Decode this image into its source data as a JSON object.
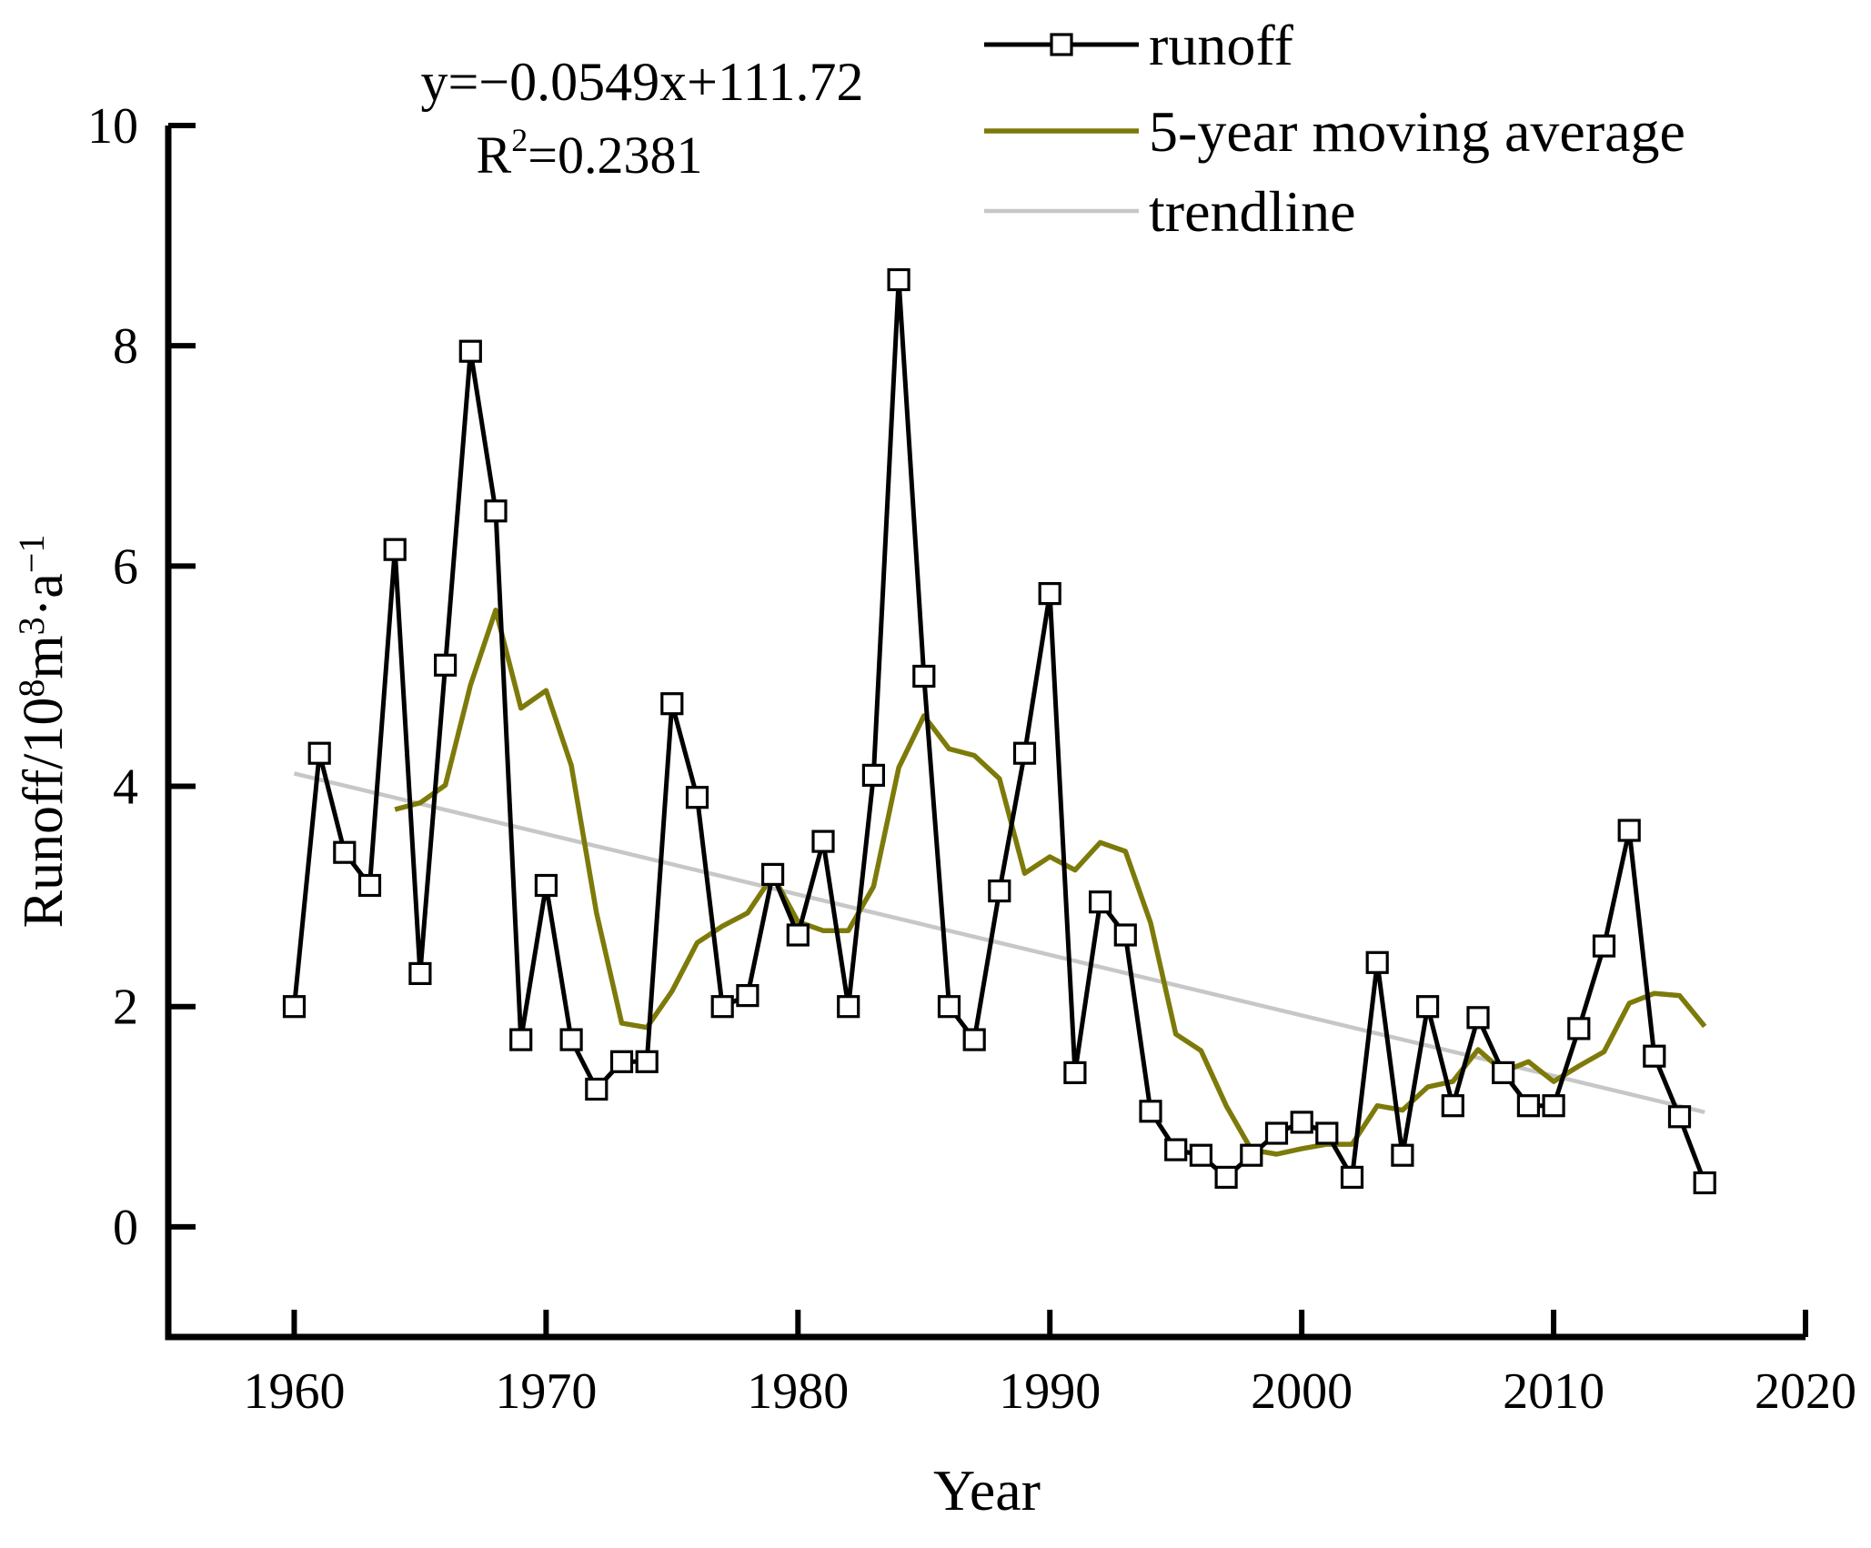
{
  "chart_data": {
    "type": "line",
    "title": "",
    "xlabel": "Year",
    "ylabel": "Runoff/10⁸m³·a⁻¹",
    "ylabel_parts": {
      "base1": "Runoff/10",
      "sup1": "8",
      "base2": "m",
      "sup2": "3",
      "base3": "·a",
      "sup3": "−1"
    },
    "annotation": {
      "equation": "y=−0.0549x+111.72",
      "r2_base": "R",
      "r2_sup": "2",
      "r2_rest": "=0.2381"
    },
    "axes": {
      "x_ticks": [
        1960,
        1970,
        1980,
        1990,
        2000,
        2010,
        2020
      ],
      "y_ticks": [
        0,
        2,
        4,
        6,
        8,
        10
      ],
      "x_range": [
        1955,
        2020
      ],
      "y_range": [
        -1,
        10
      ],
      "grid": false
    },
    "series": [
      {
        "name": "runoff",
        "type": "line+markers",
        "marker": "open-square",
        "color": "#000000",
        "x": [
          1960,
          1961,
          1962,
          1963,
          1964,
          1965,
          1966,
          1967,
          1968,
          1969,
          1970,
          1971,
          1972,
          1973,
          1974,
          1975,
          1976,
          1977,
          1978,
          1979,
          1980,
          1981,
          1982,
          1983,
          1984,
          1985,
          1986,
          1987,
          1988,
          1989,
          1990,
          1991,
          1992,
          1993,
          1994,
          1995,
          1996,
          1997,
          1998,
          1999,
          2000,
          2001,
          2002,
          2003,
          2004,
          2005,
          2006,
          2007,
          2008,
          2009,
          2010,
          2011,
          2012,
          2013,
          2014,
          2015,
          2016
        ],
        "y": [
          2.0,
          4.3,
          3.4,
          3.1,
          6.15,
          2.3,
          5.1,
          7.95,
          6.5,
          1.7,
          3.1,
          1.7,
          1.25,
          1.5,
          1.5,
          4.75,
          3.9,
          2.0,
          2.1,
          3.2,
          2.65,
          3.5,
          2.0,
          4.1,
          8.6,
          5.0,
          2.0,
          1.7,
          3.05,
          4.3,
          5.75,
          1.4,
          2.95,
          2.65,
          1.05,
          0.7,
          0.65,
          0.45,
          0.65,
          0.85,
          0.95,
          0.85,
          0.45,
          2.4,
          0.65,
          2.0,
          1.1,
          1.9,
          1.4,
          1.1,
          1.1,
          1.8,
          2.55,
          3.6,
          1.55,
          1.0,
          0.4
        ]
      },
      {
        "name": "5-year moving average",
        "type": "line",
        "color": "#7d7a0a",
        "window": 5,
        "x": [
          1964,
          1965,
          1966,
          1967,
          1968,
          1969,
          1970,
          1971,
          1972,
          1973,
          1974,
          1975,
          1976,
          1977,
          1978,
          1979,
          1980,
          1981,
          1982,
          1983,
          1984,
          1985,
          1986,
          1987,
          1988,
          1989,
          1990,
          1991,
          1992,
          1993,
          1994,
          1995,
          1996,
          1997,
          1998,
          1999,
          2000,
          2001,
          2002,
          2003,
          2004,
          2005,
          2006,
          2007,
          2008,
          2009,
          2010,
          2011,
          2012,
          2013,
          2014,
          2015,
          2016
        ],
        "y": [
          3.79,
          3.85,
          4.01,
          4.92,
          5.6,
          4.71,
          4.87,
          4.19,
          2.85,
          1.85,
          1.81,
          2.14,
          2.58,
          2.73,
          2.85,
          3.19,
          2.77,
          2.69,
          2.69,
          3.09,
          4.17,
          4.64,
          4.34,
          4.28,
          4.07,
          3.21,
          3.36,
          3.24,
          3.49,
          3.41,
          2.76,
          1.75,
          1.6,
          1.1,
          0.7,
          0.66,
          0.71,
          0.75,
          0.75,
          1.1,
          1.06,
          1.27,
          1.32,
          1.61,
          1.41,
          1.5,
          1.32,
          1.46,
          1.59,
          2.03,
          2.12,
          2.1,
          1.82
        ]
      },
      {
        "name": "trendline",
        "type": "line",
        "color": "#c7c7c7",
        "slope": -0.0549,
        "intercept": 111.72,
        "r_squared": 0.2381,
        "x_start": 1960,
        "x_end": 2016
      }
    ],
    "legend": {
      "position": "top-right",
      "items": [
        {
          "label": "runoff"
        },
        {
          "label": "5-year moving average"
        },
        {
          "label": "trendline"
        }
      ]
    }
  }
}
